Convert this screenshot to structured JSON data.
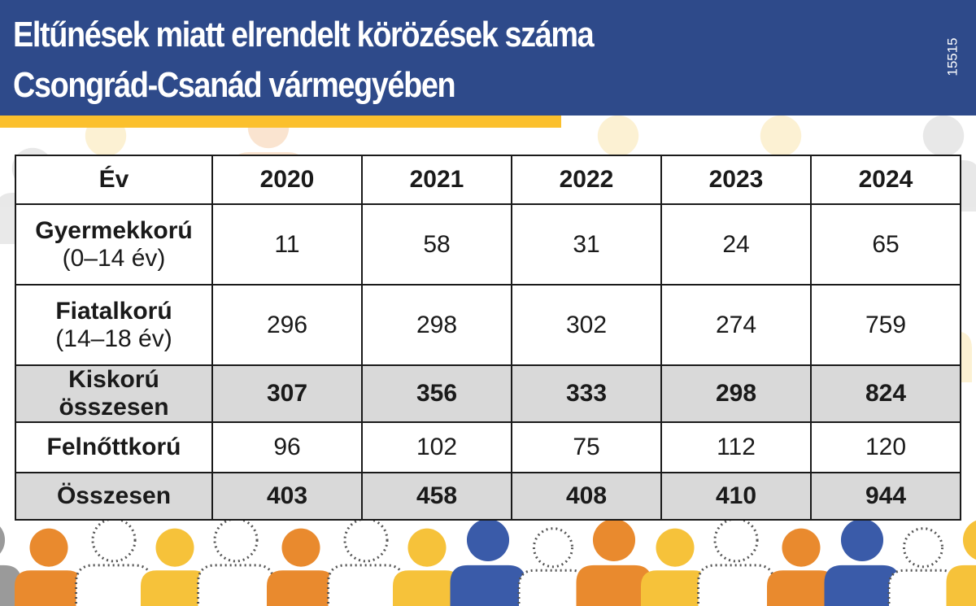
{
  "title": {
    "line1": "Eltűnések miatt elrendelt körözések száma",
    "line2": "Csongrád-Csanád vármegyében"
  },
  "side_code": "15515",
  "colors": {
    "header_bg": "#2e4a8a",
    "accent_yellow": "#fbc02d",
    "sum_row_bg": "#d9d9d9",
    "figure_orange": "#e98a2e",
    "figure_blue": "#3a5ba9",
    "figure_grey": "#9a9a9a",
    "figure_yellow": "#f6c23a"
  },
  "chart_data": {
    "type": "table",
    "columns": [
      "Év",
      "2020",
      "2021",
      "2022",
      "2023",
      "2024"
    ],
    "rows": [
      {
        "label": "Gyermekkorú",
        "sublabel": "(0–14 év)",
        "values": [
          "11",
          "58",
          "31",
          "24",
          "65"
        ]
      },
      {
        "label": "Fiatalkorú",
        "sublabel": "(14–18 év)",
        "values": [
          "296",
          "298",
          "302",
          "274",
          "759"
        ]
      },
      {
        "label": "Kiskorú összesen",
        "values": [
          "307",
          "356",
          "333",
          "298",
          "824"
        ]
      },
      {
        "label": "Felnőttkorú",
        "values": [
          "96",
          "102",
          "75",
          "112",
          "120"
        ]
      },
      {
        "label": "Összesen",
        "values": [
          "403",
          "458",
          "408",
          "410",
          "944"
        ]
      }
    ]
  }
}
